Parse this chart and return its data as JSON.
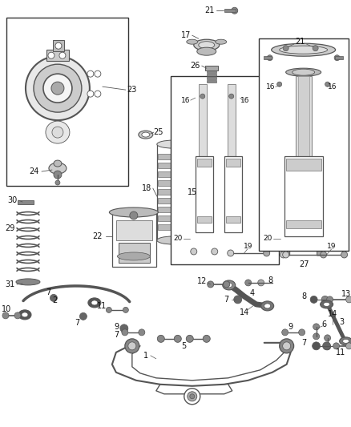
{
  "bg_color": "#ffffff",
  "fig_width": 4.38,
  "fig_height": 5.33,
  "dpi": 100,
  "gray1": "#555555",
  "gray2": "#888888",
  "gray3": "#bbbbbb",
  "dark": "#333333",
  "black": "#111111"
}
